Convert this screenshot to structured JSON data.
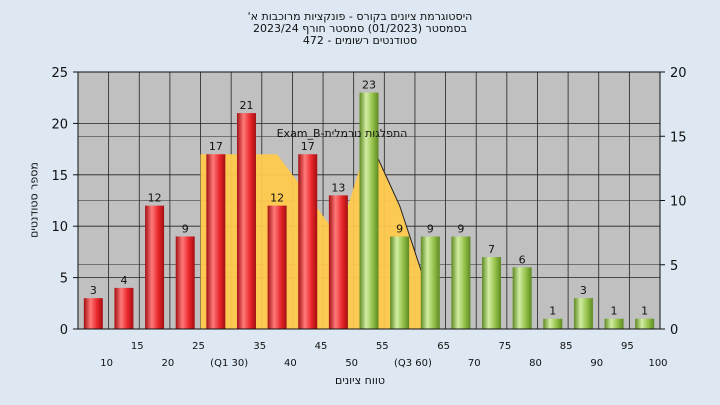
{
  "chart_data": {
    "type": "bar",
    "title": [
      "היסטוגרמת ציונים בקורס - פונקציות מרוכבות א'",
      "בסמסטר (01/2023) סמסטר חורף 2023/24",
      "סטודנטים רשומים - 472"
    ],
    "xlabel": "טווח ציונים",
    "ylabel": "מספר סטודנטים",
    "ylim": [
      0,
      25
    ],
    "yticks": [
      0,
      5,
      10,
      15,
      20,
      25
    ],
    "y2lim": [
      0,
      20
    ],
    "y2ticks": [
      0,
      5,
      10,
      15,
      20
    ],
    "grid": true,
    "categories": [
      "10",
      "15",
      "20",
      "25",
      "(Q1 30)",
      "35",
      "40",
      "45",
      "50",
      "55",
      "(Q3 60)",
      "65",
      "70",
      "75",
      "80",
      "85",
      "90",
      "95",
      "100"
    ],
    "values": [
      3,
      4,
      12,
      9,
      17,
      21,
      12,
      17,
      13,
      23,
      9,
      9,
      9,
      7,
      6,
      1,
      3,
      1,
      1
    ],
    "bar_colors": [
      "red",
      "red",
      "red",
      "red",
      "red",
      "red",
      "red",
      "red",
      "red",
      "green",
      "green",
      "green",
      "green",
      "green",
      "green",
      "green",
      "green",
      "green",
      "green"
    ],
    "area_series": {
      "name": "התפלגות נורמלית-Exam_B",
      "label": "התפלגות נורמלית-Exam_B",
      "x": [
        "(Q1 30)",
        "35",
        "40",
        "45",
        "50",
        "55",
        "(Q3 60)",
        "65"
      ],
      "values": [
        17,
        17,
        17,
        13,
        9,
        18.5,
        12,
        3
      ]
    },
    "colors": {
      "red_bar": "#e8262a",
      "green_bar": "#92c047",
      "area": "#ffc94d",
      "background": "#dde8f3",
      "plot_bg": "#c0c0c0",
      "grid": "#000000"
    }
  }
}
